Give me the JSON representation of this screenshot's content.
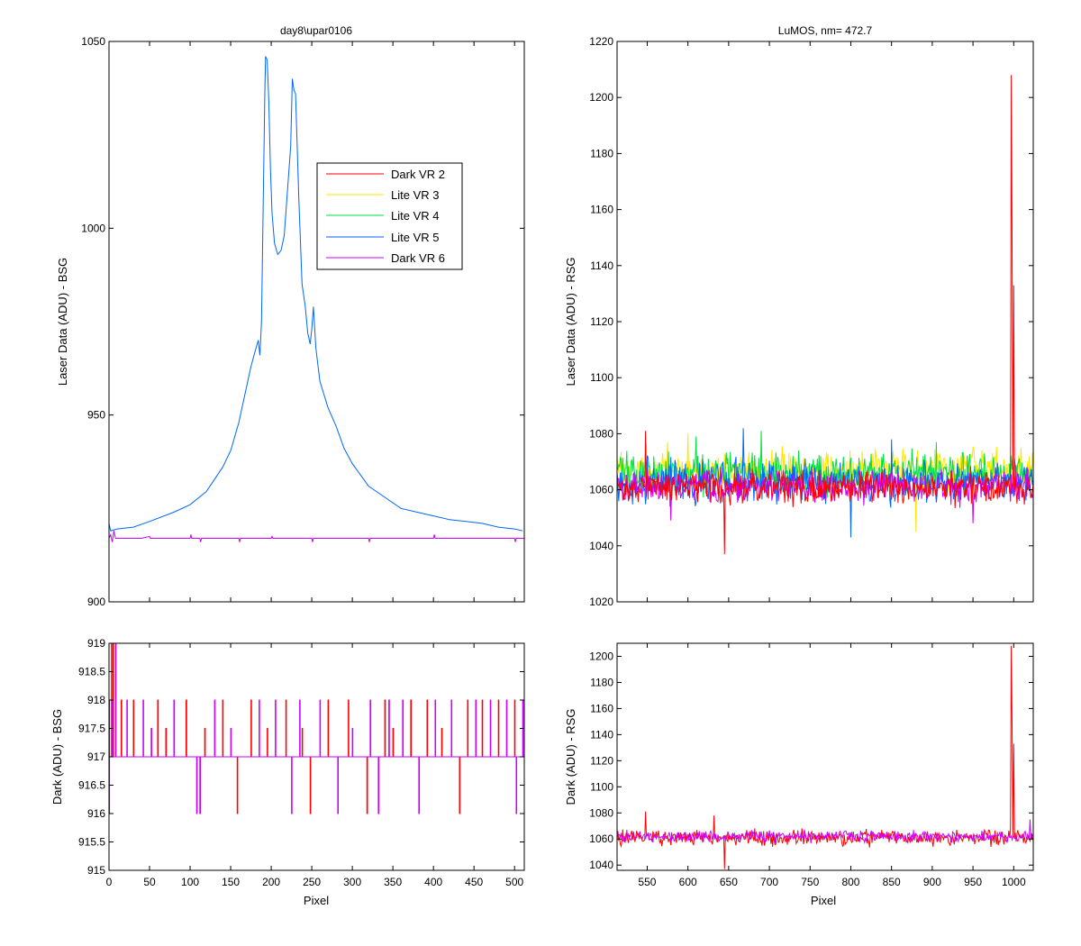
{
  "colors": {
    "dark_vr_2": "#ff0000",
    "lite_vr_3": "#ffe600",
    "lite_vr_4": "#00e040",
    "lite_vr_5": "#0066ff",
    "dark_vr_6": "#cc00ff",
    "axes": "#000000",
    "background": "#ffffff"
  },
  "chart_data": [
    {
      "id": "bsg_laser",
      "type": "line",
      "title": "day8\\upar0106",
      "xlabel": "",
      "ylabel": "Laser Data (ADU) - BSG",
      "xlim": [
        0,
        512
      ],
      "ylim": [
        900,
        1050
      ],
      "xticks": [
        0,
        50,
        100,
        150,
        200,
        250,
        300,
        350,
        400,
        450,
        500
      ],
      "xtick_labels_shown": false,
      "yticks": [
        900,
        950,
        1000,
        1050
      ],
      "grid": false,
      "legend": {
        "placement": "upper-right",
        "entries": [
          "Dark VR 2",
          "Lite VR 3",
          "Lite VR 4",
          "Lite VR 5",
          "Dark VR 6"
        ]
      },
      "series": [
        {
          "name": "Lite VR 5",
          "color_key": "lite_vr_5",
          "points": [
            [
              0,
              921
            ],
            [
              2,
              919
            ],
            [
              10,
              919.5
            ],
            [
              30,
              920
            ],
            [
              50,
              921.5
            ],
            [
              80,
              924
            ],
            [
              100,
              926
            ],
            [
              120,
              929.5
            ],
            [
              140,
              936
            ],
            [
              150,
              940.5
            ],
            [
              160,
              948
            ],
            [
              170,
              958
            ],
            [
              175,
              963
            ],
            [
              180,
              967
            ],
            [
              184,
              970
            ],
            [
              186,
              966
            ],
            [
              188,
              975
            ],
            [
              190,
              1005
            ],
            [
              192,
              1035
            ],
            [
              193,
              1046
            ],
            [
              195,
              1045
            ],
            [
              197,
              1034
            ],
            [
              199,
              1016
            ],
            [
              201,
              1004
            ],
            [
              204,
              996
            ],
            [
              208,
              993
            ],
            [
              212,
              994
            ],
            [
              216,
              998
            ],
            [
              220,
              1010
            ],
            [
              224,
              1022
            ],
            [
              226,
              1040
            ],
            [
              228,
              1037
            ],
            [
              230,
              1036
            ],
            [
              234,
              1008
            ],
            [
              238,
              985
            ],
            [
              242,
              979
            ],
            [
              245,
              972
            ],
            [
              248,
              969
            ],
            [
              250,
              973
            ],
            [
              252,
              979
            ],
            [
              255,
              968
            ],
            [
              260,
              959
            ],
            [
              270,
              952
            ],
            [
              280,
              947
            ],
            [
              290,
              941
            ],
            [
              300,
              937
            ],
            [
              320,
              931
            ],
            [
              340,
              928
            ],
            [
              360,
              925
            ],
            [
              380,
              924
            ],
            [
              400,
              923
            ],
            [
              420,
              922
            ],
            [
              440,
              921.5
            ],
            [
              460,
              921
            ],
            [
              480,
              920
            ],
            [
              500,
              919.5
            ],
            [
              510,
              919
            ]
          ]
        },
        {
          "name": "Dark VR 6",
          "color_key": "dark_vr_6",
          "points": [
            [
              0,
              917
            ],
            [
              2,
              918
            ],
            [
              4,
              916
            ],
            [
              6,
              919
            ],
            [
              8,
              917
            ],
            [
              40,
              917
            ],
            [
              50,
              917.5
            ],
            [
              51,
              917
            ],
            [
              100,
              917
            ],
            [
              101,
              918
            ],
            [
              102,
              917
            ],
            [
              112,
              917
            ],
            [
              113,
              916
            ],
            [
              114,
              917
            ],
            [
              160,
              917
            ],
            [
              161,
              916
            ],
            [
              162,
              917
            ],
            [
              200,
              917
            ],
            [
              201,
              917.5
            ],
            [
              202,
              917
            ],
            [
              250,
              917
            ],
            [
              251,
              916
            ],
            [
              252,
              917
            ],
            [
              320,
              917
            ],
            [
              321,
              916
            ],
            [
              322,
              917
            ],
            [
              400,
              917
            ],
            [
              401,
              918
            ],
            [
              402,
              917
            ],
            [
              500,
              917
            ],
            [
              501,
              916
            ],
            [
              502,
              917
            ],
            [
              512,
              917
            ]
          ]
        }
      ]
    },
    {
      "id": "rsg_laser",
      "type": "line",
      "title": "LuMOS, nm= 472.7",
      "xlabel": "",
      "ylabel": "Laser Data (ADU) - RSG",
      "xlim": [
        513,
        1024
      ],
      "ylim": [
        1020,
        1220
      ],
      "xticks": [
        550,
        600,
        650,
        700,
        750,
        800,
        850,
        900,
        950,
        1000
      ],
      "xtick_labels_shown": false,
      "yticks": [
        1020,
        1040,
        1060,
        1080,
        1100,
        1120,
        1140,
        1160,
        1180,
        1200,
        1220
      ],
      "grid": false,
      "series": [
        {
          "name": "Lite VR 3",
          "color_key": "lite_vr_3",
          "base": 1067,
          "noise": 5,
          "spikes": [
            [
              575,
              1077
            ],
            [
              600,
              1080
            ],
            [
              880,
              1045
            ]
          ]
        },
        {
          "name": "Lite VR 4",
          "color_key": "lite_vr_4",
          "base": 1066,
          "noise": 5,
          "spikes": [
            [
              610,
              1079
            ],
            [
              690,
              1081
            ],
            [
              905,
              1077
            ]
          ]
        },
        {
          "name": "Lite VR 5",
          "color_key": "lite_vr_5",
          "base": 1063,
          "noise": 5,
          "spikes": [
            [
              668,
              1082
            ],
            [
              800,
              1043
            ],
            [
              850,
              1078
            ]
          ]
        },
        {
          "name": "Dark VR 6",
          "color_key": "dark_vr_6",
          "base": 1061,
          "noise": 4,
          "spikes": [
            [
              579,
              1049
            ],
            [
              950,
              1048
            ]
          ]
        },
        {
          "name": "Dark VR 2",
          "color_key": "dark_vr_2",
          "base": 1061,
          "noise": 4,
          "spikes": [
            [
              548,
              1081
            ],
            [
              645,
              1037
            ],
            [
              997,
              1208
            ],
            [
              998,
              1147
            ],
            [
              1000,
              1133
            ]
          ]
        }
      ]
    },
    {
      "id": "bsg_dark",
      "type": "line",
      "title": "",
      "xlabel": "Pixel",
      "ylabel": "Dark (ADU) - BSG",
      "xlim": [
        0,
        512
      ],
      "ylim": [
        915,
        919
      ],
      "xticks": [
        0,
        50,
        100,
        150,
        200,
        250,
        300,
        350,
        400,
        450,
        500
      ],
      "yticks": [
        915,
        915.5,
        916,
        916.5,
        917,
        917.5,
        918,
        918.5,
        919
      ],
      "grid": false,
      "series": [
        {
          "name": "Dark VR 2",
          "color_key": "dark_vr_2",
          "spikes": [
            [
              0,
              918
            ],
            [
              3,
              919
            ],
            [
              5,
              919
            ],
            [
              15,
              918
            ],
            [
              30,
              918
            ],
            [
              60,
              918
            ],
            [
              70,
              917.5
            ],
            [
              95,
              918
            ],
            [
              118,
              917.5
            ],
            [
              140,
              918
            ],
            [
              158,
              916
            ],
            [
              175,
              918
            ],
            [
              195,
              917.5
            ],
            [
              218,
              918
            ],
            [
              238,
              917.5
            ],
            [
              248,
              916
            ],
            [
              270,
              918
            ],
            [
              295,
              918
            ],
            [
              318,
              916
            ],
            [
              340,
              918
            ],
            [
              350,
              917.5
            ],
            [
              372,
              918
            ],
            [
              392,
              918
            ],
            [
              410,
              917.5
            ],
            [
              432,
              916
            ],
            [
              442,
              918
            ],
            [
              460,
              918
            ],
            [
              480,
              918
            ],
            [
              500,
              918
            ]
          ]
        },
        {
          "name": "Dark VR 6",
          "color_key": "dark_vr_6",
          "spikes": [
            [
              0,
              916
            ],
            [
              4,
              918
            ],
            [
              8,
              919
            ],
            [
              22,
              918
            ],
            [
              42,
              918
            ],
            [
              52,
              917.5
            ],
            [
              80,
              918
            ],
            [
              108,
              916
            ],
            [
              112,
              916
            ],
            [
              130,
              918
            ],
            [
              150,
              917.5
            ],
            [
              185,
              918
            ],
            [
              205,
              918
            ],
            [
              225,
              916
            ],
            [
              235,
              918
            ],
            [
              260,
              918
            ],
            [
              282,
              916
            ],
            [
              300,
              917.5
            ],
            [
              322,
              918
            ],
            [
              332,
              916
            ],
            [
              345,
              918
            ],
            [
              362,
              918
            ],
            [
              382,
              916
            ],
            [
              402,
              918
            ],
            [
              422,
              918
            ],
            [
              452,
              918
            ],
            [
              470,
              918
            ],
            [
              490,
              918
            ],
            [
              502,
              916
            ],
            [
              510,
              918
            ]
          ]
        }
      ]
    },
    {
      "id": "rsg_dark",
      "type": "line",
      "title": "",
      "xlabel": "Pixel",
      "ylabel": "Dark (ADU) - RSG",
      "xlim": [
        513,
        1024
      ],
      "ylim": [
        1036,
        1210
      ],
      "xticks": [
        550,
        600,
        650,
        700,
        750,
        800,
        850,
        900,
        950,
        1000
      ],
      "yticks": [
        1040,
        1060,
        1080,
        1100,
        1120,
        1140,
        1160,
        1180,
        1200
      ],
      "grid": false,
      "series": [
        {
          "name": "Dark VR 2",
          "color_key": "dark_vr_2",
          "base": 1061,
          "noise": 4,
          "spikes": [
            [
              548,
              1081
            ],
            [
              632,
              1078
            ],
            [
              645,
              1037
            ],
            [
              997,
              1208
            ],
            [
              998,
              1147
            ],
            [
              1000,
              1133
            ]
          ]
        },
        {
          "name": "Dark VR 6",
          "color_key": "dark_vr_6",
          "base": 1062,
          "noise": 3,
          "spikes": [
            [
              1020,
              1075
            ]
          ]
        }
      ]
    }
  ]
}
